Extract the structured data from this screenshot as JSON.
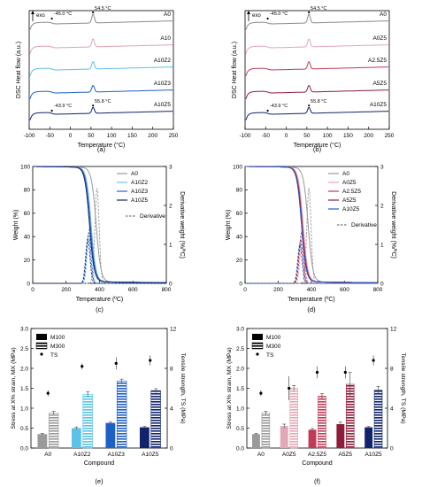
{
  "chart_data": [
    {
      "id": "a",
      "panel_label": "(a)",
      "type": "line",
      "title": "",
      "xlabel": "Temperature (°C)",
      "ylabel": "DSC Heat flow (a.u.)",
      "xlim": [
        -100,
        250
      ],
      "xticks": [
        -100,
        -50,
        0,
        50,
        100,
        150,
        200,
        250
      ],
      "exo_label": "exo",
      "series": [
        {
          "name": "A0",
          "color": "#8a8a8a",
          "tg_label": "-45.0 °C",
          "tm_label": "54.5 °C"
        },
        {
          "name": "A10",
          "color": "#e0a3ad"
        },
        {
          "name": "A10Z2",
          "color": "#5cc2e6"
        },
        {
          "name": "A10Z3",
          "color": "#1f5fc8"
        },
        {
          "name": "A10Z5",
          "color": "#10236b",
          "tg_label": "-43.9 °C",
          "tm_label": "55.8 °C"
        }
      ]
    },
    {
      "id": "b",
      "panel_label": "(b)",
      "type": "line",
      "title": "",
      "xlabel": "Temperature (°C)",
      "ylabel": "DSC Heat flow (a.u.)",
      "xlim": [
        -100,
        250
      ],
      "xticks": [
        -100,
        -50,
        0,
        50,
        100,
        150,
        200,
        250
      ],
      "exo_label": "exo",
      "series": [
        {
          "name": "A0",
          "color": "#8a8a8a",
          "tg_label": "-45.0 °C",
          "tm_label": "54.5 °C"
        },
        {
          "name": "A0Z5",
          "color": "#e3a8b5"
        },
        {
          "name": "A2.5Z5",
          "color": "#c23a55"
        },
        {
          "name": "A5Z5",
          "color": "#8e1c3a"
        },
        {
          "name": "A10Z5",
          "color": "#10236b",
          "tg_label": "-43.9 °C",
          "tm_label": "55.8 °C"
        }
      ]
    },
    {
      "id": "c",
      "panel_label": "(c)",
      "type": "line",
      "title": "",
      "xlabel": "Temperature (ºC)",
      "ylabel": "Weight (%)",
      "ylabel_right": "Derivative weight (%/ºC)",
      "xlim": [
        0,
        800
      ],
      "ylim": [
        0,
        100
      ],
      "ylim_right": [
        0,
        3
      ],
      "xticks": [
        0,
        200,
        400,
        600,
        800
      ],
      "yticks": [
        0,
        20,
        40,
        60,
        80,
        100
      ],
      "yticks_right": [
        0,
        1,
        2,
        3
      ],
      "derivative_label": "Derivative",
      "series": [
        {
          "name": "A0",
          "color": "#9a9a9a",
          "onset": 380,
          "peak": 385,
          "peak_rate": 2.45
        },
        {
          "name": "A10Z2",
          "color": "#6cc4ea",
          "onset": 350,
          "peak": 340,
          "peak_rate": 1.45
        },
        {
          "name": "A10Z3",
          "color": "#2a5fc8",
          "onset": 345,
          "peak": 335,
          "peak_rate": 1.3
        },
        {
          "name": "A10Z5",
          "color": "#10236b",
          "onset": 340,
          "peak": 330,
          "peak_rate": 1.15
        }
      ]
    },
    {
      "id": "d",
      "panel_label": "(d)",
      "type": "line",
      "title": "",
      "xlabel": "Temperature (ºC)",
      "ylabel": "Weight (%)",
      "ylabel_right": "Derivative weight (%/ºC)",
      "xlim": [
        0,
        800
      ],
      "ylim": [
        0,
        100
      ],
      "ylim_right": [
        0,
        3
      ],
      "xticks": [
        0,
        200,
        400,
        600,
        800
      ],
      "yticks": [
        0,
        20,
        40,
        60,
        80,
        100
      ],
      "yticks_right": [
        0,
        1,
        2,
        3
      ],
      "derivative_label": "Derivative",
      "series": [
        {
          "name": "A0",
          "color": "#9a9a9a",
          "onset": 380,
          "peak": 385,
          "peak_rate": 2.45
        },
        {
          "name": "A0Z5",
          "color": "#e3a8b5",
          "onset": 350,
          "peak": 345,
          "peak_rate": 1.2
        },
        {
          "name": "A2.5Z5",
          "color": "#c23a55",
          "onset": 345,
          "peak": 340,
          "peak_rate": 1.3
        },
        {
          "name": "A5Z5",
          "color": "#8e1c3a",
          "onset": 342,
          "peak": 335,
          "peak_rate": 1.1
        },
        {
          "name": "A10Z5",
          "color": "#1f5fc8",
          "onset": 340,
          "peak": 330,
          "peak_rate": 1.0
        }
      ]
    },
    {
      "id": "e",
      "panel_label": "(e)",
      "type": "bar",
      "title": "",
      "xlabel": "Compound",
      "ylabel": "Stress at X% strain, MX (MPa)",
      "ylabel_right": "Tensile strength, TS (MPa)",
      "ylim": [
        0,
        3
      ],
      "ylim_right": [
        0,
        12
      ],
      "yticks": [
        0.0,
        0.5,
        1.0,
        1.5,
        2.0,
        2.5,
        3.0
      ],
      "yticks_right": [
        0,
        4,
        8,
        12
      ],
      "legend": [
        "M100",
        "M300",
        "TS"
      ],
      "categories": [
        "A0",
        "A10Z2",
        "A10Z3",
        "A10Z5"
      ],
      "colors": [
        "#9a9a9a",
        "#5cc2e6",
        "#1f5fc8",
        "#10236b"
      ],
      "series": [
        {
          "name": "M100",
          "values": [
            0.35,
            0.5,
            0.63,
            0.52
          ],
          "errors": [
            0.02,
            0.03,
            0.02,
            0.02
          ]
        },
        {
          "name": "M300",
          "values": [
            0.88,
            1.35,
            1.68,
            1.44
          ],
          "errors": [
            0.04,
            0.06,
            0.05,
            0.05
          ]
        },
        {
          "name": "TS",
          "values": [
            5.5,
            8.2,
            8.5,
            8.8
          ],
          "errors": [
            0.3,
            0.3,
            0.6,
            0.5
          ]
        }
      ]
    },
    {
      "id": "f",
      "panel_label": "(f)",
      "type": "bar",
      "title": "",
      "xlabel": "Compound",
      "ylabel": "Stress at X% strain, MX (MPa)",
      "ylabel_right": "Tensile strength, TS (MPa)",
      "ylim": [
        0,
        3
      ],
      "ylim_right": [
        0,
        12
      ],
      "yticks": [
        0.0,
        0.5,
        1.0,
        1.5,
        2.0,
        2.5,
        3.0
      ],
      "yticks_right": [
        0,
        4,
        8,
        12
      ],
      "legend": [
        "M100",
        "M300",
        "TS"
      ],
      "categories": [
        "A0",
        "A0Z5",
        "A2.5Z5",
        "A5Z5",
        "A10Z5"
      ],
      "colors": [
        "#9a9a9a",
        "#e3a8b5",
        "#c23a55",
        "#8e1c3a",
        "#10236b"
      ],
      "series": [
        {
          "name": "M100",
          "values": [
            0.35,
            0.55,
            0.46,
            0.6,
            0.52
          ],
          "errors": [
            0.02,
            0.05,
            0.03,
            0.05,
            0.02
          ]
        },
        {
          "name": "M300",
          "values": [
            0.88,
            1.5,
            1.3,
            1.6,
            1.45
          ],
          "errors": [
            0.04,
            0.07,
            0.07,
            0.3,
            0.1
          ]
        },
        {
          "name": "TS",
          "values": [
            5.5,
            6.0,
            7.6,
            7.6,
            8.8
          ],
          "errors": [
            0.3,
            1.2,
            0.6,
            0.6,
            0.5
          ]
        }
      ]
    }
  ]
}
